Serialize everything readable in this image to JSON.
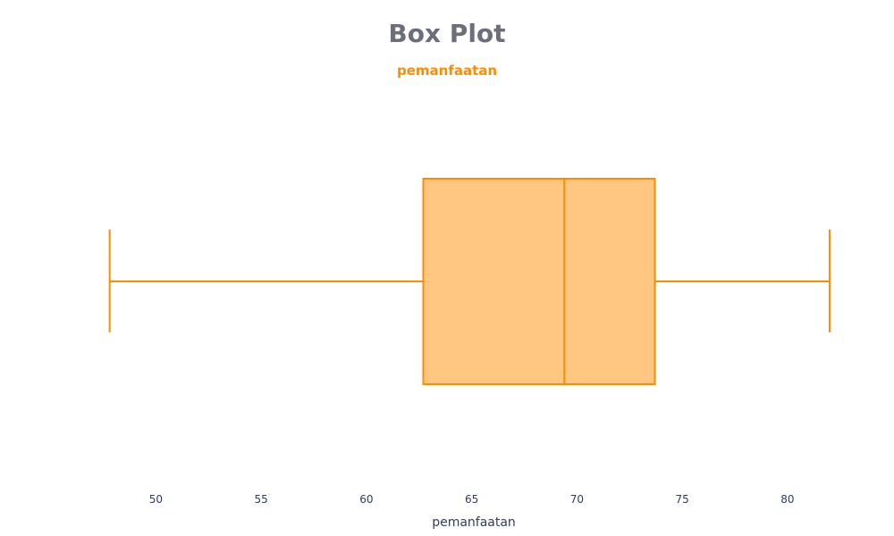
{
  "chart_data": {
    "type": "box",
    "title": "Box Plot",
    "subtitle": "pemanfaatan",
    "xlabel": "pemanfaatan",
    "orientation": "horizontal",
    "xlim": [
      47.9,
      82.3
    ],
    "xticks": [
      50,
      55,
      60,
      65,
      70,
      75,
      80
    ],
    "box": {
      "min": 47.8,
      "q1": 62.7,
      "median": 69.4,
      "q3": 73.7,
      "max": 82.0
    },
    "grid": false,
    "legend": "none"
  },
  "colors": {
    "title": "#6b6f7b",
    "accent": "#ff8c00",
    "box_fill": "#ffc781",
    "tick_text": "#2f3e5c",
    "axis_title": "#2f3e5c"
  }
}
